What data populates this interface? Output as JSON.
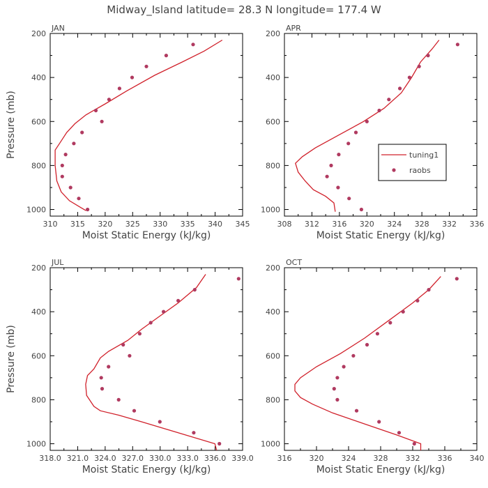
{
  "title": "Midway_Island   latitude= 28.3 N longitude= 177.4 W",
  "colors": {
    "model": "#d0202a",
    "obs": "#b03a60",
    "frame": "#000000",
    "text": "#444444"
  },
  "legend": {
    "model_label": "tuning1",
    "obs_label": "raobs",
    "panel": "APR"
  },
  "chart_data": [
    {
      "type": "line",
      "panel": "JAN",
      "xlabel": "Moist Static Energy (kJ/kg)",
      "ylabel": "Pressure (mb)",
      "xlim": [
        310,
        345
      ],
      "ylim": [
        1030,
        200
      ],
      "xticks": [
        "310",
        "315",
        "320",
        "325",
        "330",
        "335",
        "340",
        "345"
      ],
      "yticks": [
        "200",
        "400",
        "600",
        "800",
        "1000"
      ],
      "series": [
        {
          "name": "tuning1",
          "kind": "line",
          "points": [
            [
              316.5,
              1005
            ],
            [
              315.5,
              990
            ],
            [
              313.5,
              960
            ],
            [
              312.0,
              920
            ],
            [
              311.2,
              870
            ],
            [
              310.9,
              800
            ],
            [
              310.9,
              730
            ],
            [
              311.7,
              700
            ],
            [
              313.0,
              650
            ],
            [
              314.5,
              610
            ],
            [
              316.5,
              570
            ],
            [
              320.0,
              520
            ],
            [
              324.0,
              460
            ],
            [
              329.0,
              390
            ],
            [
              334.0,
              330
            ],
            [
              338.0,
              280
            ],
            [
              341.3,
              230
            ]
          ]
        },
        {
          "name": "raobs",
          "kind": "scatter",
          "points": [
            [
              316.8,
              1000
            ],
            [
              315.2,
              950
            ],
            [
              313.7,
              900
            ],
            [
              312.2,
              850
            ],
            [
              312.2,
              800
            ],
            [
              312.8,
              750
            ],
            [
              314.3,
              700
            ],
            [
              315.8,
              650
            ],
            [
              318.3,
              550
            ],
            [
              319.4,
              600
            ],
            [
              320.7,
              500
            ],
            [
              322.6,
              450
            ],
            [
              324.9,
              400
            ],
            [
              327.5,
              350
            ],
            [
              331.1,
              300
            ],
            [
              336.0,
              250
            ]
          ]
        }
      ]
    },
    {
      "type": "line",
      "panel": "APR",
      "xlabel": "Moist Static Energy (kJ/kg)",
      "ylabel": "",
      "xlim": [
        308,
        336
      ],
      "ylim": [
        1030,
        200
      ],
      "xticks": [
        "308",
        "312",
        "316",
        "320",
        "324",
        "328",
        "332",
        "336"
      ],
      "yticks": [
        "200",
        "400",
        "600",
        "800",
        "1000"
      ],
      "series": [
        {
          "name": "tuning1",
          "kind": "line",
          "points": [
            [
              315.4,
              1010
            ],
            [
              315.2,
              970
            ],
            [
              314.0,
              940
            ],
            [
              312.2,
              910
            ],
            [
              311.0,
              870
            ],
            [
              310.0,
              830
            ],
            [
              309.6,
              790
            ],
            [
              310.6,
              760
            ],
            [
              312.5,
              720
            ],
            [
              316.0,
              660
            ],
            [
              319.5,
              600
            ],
            [
              322.5,
              540
            ],
            [
              325.0,
              470
            ],
            [
              326.5,
              400
            ],
            [
              327.8,
              330
            ],
            [
              329.5,
              270
            ],
            [
              330.5,
              230
            ]
          ]
        },
        {
          "name": "raobs",
          "kind": "scatter",
          "points": [
            [
              319.2,
              1000
            ],
            [
              317.4,
              950
            ],
            [
              315.8,
              900
            ],
            [
              314.2,
              850
            ],
            [
              314.8,
              800
            ],
            [
              315.9,
              750
            ],
            [
              317.3,
              700
            ],
            [
              318.4,
              650
            ],
            [
              320.0,
              600
            ],
            [
              321.8,
              550
            ],
            [
              323.2,
              500
            ],
            [
              324.8,
              450
            ],
            [
              326.2,
              400
            ],
            [
              327.6,
              350
            ],
            [
              328.9,
              300
            ],
            [
              333.2,
              250
            ]
          ]
        }
      ]
    },
    {
      "type": "line",
      "panel": "JUL",
      "xlabel": "Moist Static Energy (kJ/kg)",
      "ylabel": "Pressure (mb)",
      "xlim": [
        318.03,
        339.03
      ],
      "ylim": [
        1030,
        200
      ],
      "xticks": [
        "318.0",
        "321.0",
        "324.0",
        "327.0",
        "330.0",
        "333.0",
        "336.0",
        "339.0"
      ],
      "yticks": [
        "200",
        "400",
        "600",
        "800",
        "1000"
      ],
      "series": [
        {
          "name": "tuning1",
          "kind": "line",
          "points": [
            [
              336.2,
              1030
            ],
            [
              336.0,
              1000
            ],
            [
              332.0,
              950
            ],
            [
              328.0,
              900
            ],
            [
              325.5,
              870
            ],
            [
              323.5,
              850
            ],
            [
              322.8,
              830
            ],
            [
              322.0,
              780
            ],
            [
              321.9,
              730
            ],
            [
              322.1,
              690
            ],
            [
              322.8,
              660
            ],
            [
              323.5,
              610
            ],
            [
              324.4,
              580
            ],
            [
              326.5,
              530
            ],
            [
              328.0,
              480
            ],
            [
              330.0,
              420
            ],
            [
              332.0,
              360
            ],
            [
              334.0,
              290
            ],
            [
              335.0,
              230
            ]
          ]
        },
        {
          "name": "raobs",
          "kind": "scatter",
          "points": [
            [
              336.5,
              1000
            ],
            [
              333.7,
              950
            ],
            [
              330.0,
              900
            ],
            [
              327.2,
              850
            ],
            [
              325.5,
              800
            ],
            [
              323.7,
              750
            ],
            [
              323.6,
              700
            ],
            [
              324.4,
              650
            ],
            [
              326.0,
              550
            ],
            [
              326.7,
              600
            ],
            [
              327.8,
              500
            ],
            [
              329.0,
              450
            ],
            [
              330.4,
              400
            ],
            [
              332.0,
              350
            ],
            [
              333.8,
              300
            ],
            [
              338.6,
              250
            ]
          ]
        }
      ]
    },
    {
      "type": "line",
      "panel": "OCT",
      "xlabel": "Moist Static Energy (kJ/kg)",
      "ylabel": "",
      "xlim": [
        316,
        340
      ],
      "ylim": [
        1030,
        200
      ],
      "xticks": [
        "316",
        "320",
        "324",
        "328",
        "332",
        "336",
        "340"
      ],
      "yticks": [
        "200",
        "400",
        "600",
        "800",
        "1000"
      ],
      "series": [
        {
          "name": "tuning1",
          "kind": "line",
          "points": [
            [
              333.0,
              1030
            ],
            [
              333.0,
              1000
            ],
            [
              330.0,
              960
            ],
            [
              326.0,
              910
            ],
            [
              322.0,
              860
            ],
            [
              319.5,
              820
            ],
            [
              318.0,
              790
            ],
            [
              317.3,
              760
            ],
            [
              317.3,
              730
            ],
            [
              318.0,
              700
            ],
            [
              320.0,
              650
            ],
            [
              323.0,
              590
            ],
            [
              326.0,
              520
            ],
            [
              329.0,
              440
            ],
            [
              332.0,
              360
            ],
            [
              334.0,
              300
            ],
            [
              335.5,
              240
            ]
          ]
        },
        {
          "name": "raobs",
          "kind": "scatter",
          "points": [
            [
              332.2,
              1000
            ],
            [
              330.3,
              950
            ],
            [
              327.8,
              900
            ],
            [
              325.0,
              850
            ],
            [
              322.6,
              800
            ],
            [
              322.2,
              750
            ],
            [
              322.6,
              700
            ],
            [
              323.4,
              650
            ],
            [
              324.6,
              600
            ],
            [
              326.3,
              550
            ],
            [
              327.6,
              500
            ],
            [
              329.2,
              450
            ],
            [
              330.8,
              400
            ],
            [
              332.6,
              350
            ],
            [
              334.0,
              300
            ],
            [
              337.5,
              250
            ]
          ]
        }
      ]
    }
  ]
}
